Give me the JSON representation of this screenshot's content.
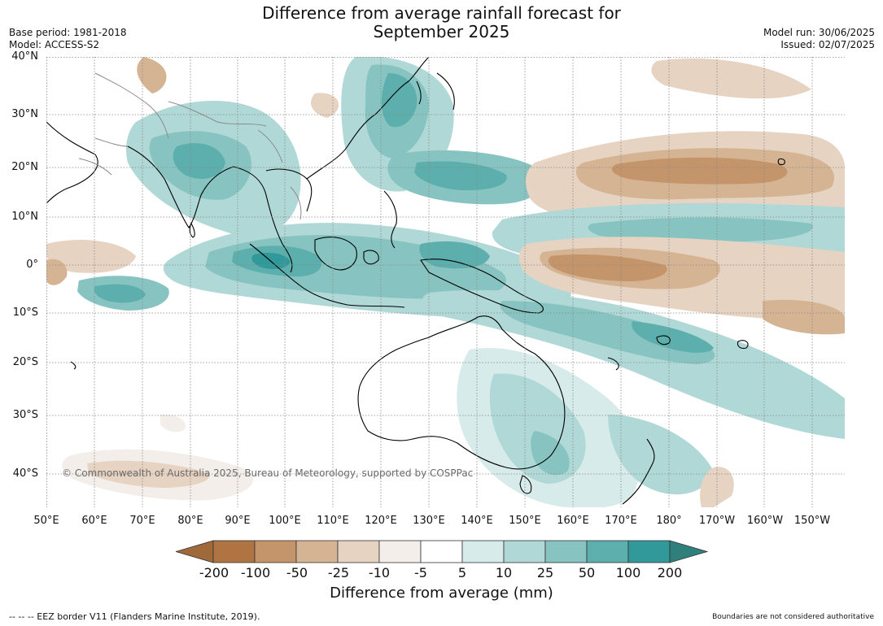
{
  "title_line1": "Difference from average rainfall forecast for",
  "title_line2": "September 2025",
  "meta_left": {
    "base_period": "Base period: 1981-2018",
    "model": "Model: ACCESS-S2"
  },
  "meta_right": {
    "model_run": "Model run: 30/06/2025",
    "issued": "Issued: 02/07/2025"
  },
  "map": {
    "lat_labels": [
      "40°N",
      "30°N",
      "20°N",
      "10°N",
      "0°",
      "10°S",
      "20°S",
      "30°S",
      "40°S"
    ],
    "lon_labels": [
      "50°E",
      "60°E",
      "70°E",
      "80°E",
      "90°E",
      "100°E",
      "110°E",
      "120°E",
      "130°E",
      "140°E",
      "150°E",
      "160°E",
      "170°E",
      "180°",
      "170°W",
      "160°W",
      "150°W"
    ],
    "copyright": "© Commonwealth of Australia 2025, Bureau of Meteorology, supported by COSPPac"
  },
  "colorbar": {
    "ticks": [
      "-200",
      "-100",
      "-50",
      "-25",
      "-10",
      "-5",
      "5",
      "10",
      "25",
      "50",
      "100",
      "200"
    ],
    "colors": [
      "#a0693a",
      "#af7441",
      "#c4946a",
      "#d5b494",
      "#e7d3c1",
      "#f3eeea",
      "#ffffff",
      "#d7ebea",
      "#b0d8d6",
      "#87c4c1",
      "#5cafac",
      "#32999a",
      "#2f7f7c"
    ],
    "label": "Difference from average (mm)"
  },
  "footer": {
    "eez_note": "--  --  -- EEZ border V11 (Flanders Marine Institute, 2019).",
    "boundary_note": "Boundaries are not considered authoritative"
  }
}
